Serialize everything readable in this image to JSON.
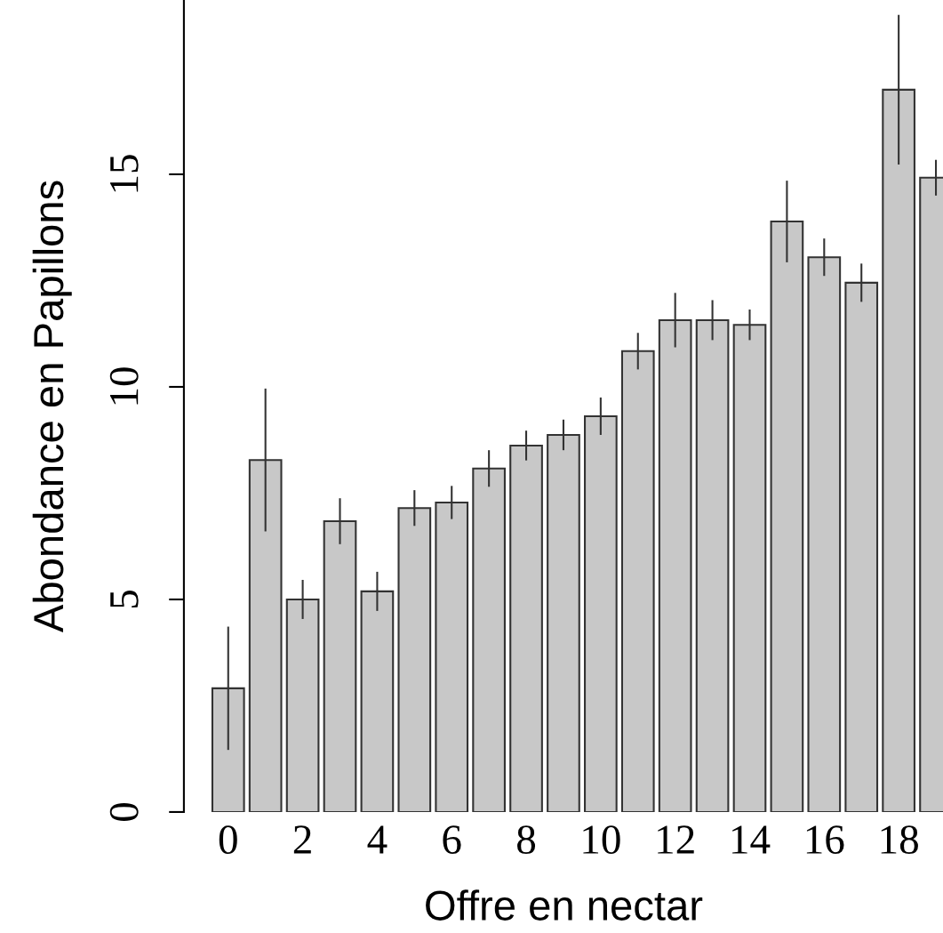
{
  "chart_data": {
    "type": "bar",
    "xlabel": "Offre en nectar",
    "ylabel": "Abondance en Papillons",
    "categories": [
      "0",
      null,
      "2",
      null,
      "4",
      null,
      "6",
      null,
      "8",
      null,
      "10",
      null,
      "12",
      null,
      "14",
      null,
      "16",
      null,
      "18",
      null
    ],
    "values": [
      2.91,
      8.28,
      5.0,
      6.84,
      5.19,
      7.15,
      7.28,
      8.08,
      8.62,
      8.87,
      9.31,
      10.84,
      11.57,
      11.57,
      11.46,
      13.89,
      13.05,
      12.45,
      16.99,
      14.92
    ],
    "errors": [
      1.45,
      1.68,
      0.46,
      0.54,
      0.46,
      0.42,
      0.39,
      0.43,
      0.35,
      0.36,
      0.44,
      0.43,
      0.64,
      0.47,
      0.36,
      0.96,
      0.44,
      0.45,
      1.76,
      0.42
    ],
    "color": "#c8c8c8",
    "ylim": [
      0,
      19.1
    ],
    "yticks": [
      0,
      5,
      10,
      15
    ],
    "grid": false
  }
}
